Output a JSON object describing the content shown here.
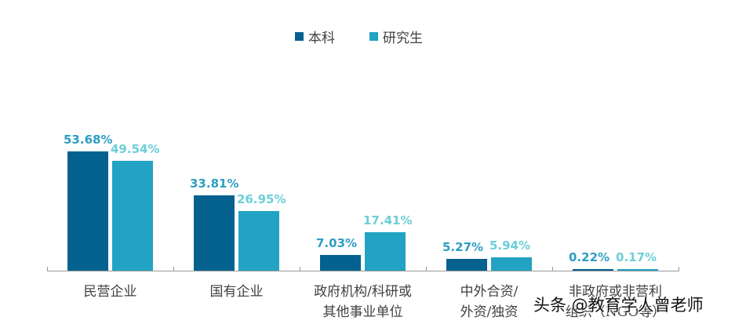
{
  "chart_data": {
    "type": "bar",
    "title": "",
    "xlabel": "",
    "ylabel": "",
    "ylim": [
      0,
      60
    ],
    "grid": false,
    "legend_position": "top",
    "categories": [
      "民营企业",
      "国有企业",
      "政府机构/科研或\n其他事业单位",
      "中外合资/\n外资/独资",
      "非政府或非营利\n组织（NGO等）"
    ],
    "series": [
      {
        "name": "本科",
        "color": "#05628f",
        "label_color": "#2e9ec4",
        "values": [
          53.68,
          33.81,
          7.03,
          5.27,
          0.22
        ],
        "labels": [
          "53.68%",
          "33.81%",
          "7.03%",
          "5.27%",
          "0.22%"
        ]
      },
      {
        "name": "研究生",
        "color": "#22a3c3",
        "label_color": "#6ccfd8",
        "values": [
          49.54,
          26.95,
          17.41,
          5.94,
          0.17
        ],
        "labels": [
          "49.54%",
          "26.95%",
          "17.41%",
          "5.94%",
          "0.17%"
        ]
      }
    ]
  },
  "legend": {
    "items": [
      {
        "label": "本科",
        "color": "#05628f"
      },
      {
        "label": "研究生",
        "color": "#22a3c3"
      }
    ]
  },
  "watermark": "头条 @教育学人曾老师"
}
